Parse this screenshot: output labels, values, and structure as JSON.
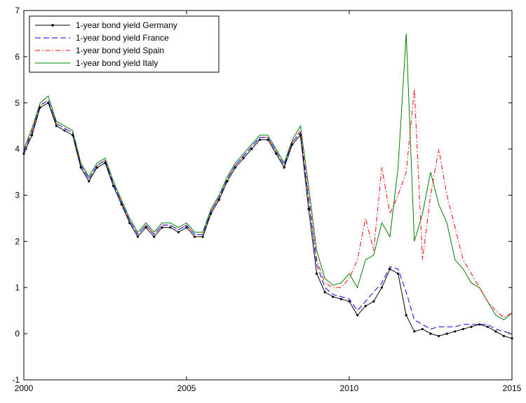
{
  "chart_data": {
    "type": "line",
    "x": [
      2000,
      2000.25,
      2000.5,
      2000.75,
      2001,
      2001.25,
      2001.5,
      2001.75,
      2002,
      2002.25,
      2002.5,
      2002.75,
      2003,
      2003.25,
      2003.5,
      2003.75,
      2004,
      2004.25,
      2004.5,
      2004.75,
      2005,
      2005.25,
      2005.5,
      2005.75,
      2006,
      2006.25,
      2006.5,
      2006.75,
      2007,
      2007.25,
      2007.5,
      2007.75,
      2008,
      2008.25,
      2008.5,
      2008.75,
      2009,
      2009.25,
      2009.5,
      2009.75,
      2010,
      2010.25,
      2010.5,
      2010.75,
      2011,
      2011.25,
      2011.5,
      2011.75,
      2012,
      2012.25,
      2012.5,
      2012.75,
      2013,
      2013.25,
      2013.5,
      2013.75,
      2014,
      2014.25,
      2014.5,
      2014.75,
      2015
    ],
    "series": [
      {
        "name": "1-year bond yield Germany",
        "color": "#000000",
        "style": "solid",
        "marker": "dot",
        "values": [
          3.9,
          4.3,
          4.9,
          5.0,
          4.5,
          4.4,
          4.3,
          3.6,
          3.3,
          3.6,
          3.7,
          3.2,
          2.8,
          2.4,
          2.1,
          2.3,
          2.1,
          2.3,
          2.3,
          2.2,
          2.3,
          2.1,
          2.1,
          2.6,
          2.9,
          3.3,
          3.6,
          3.8,
          4.0,
          4.2,
          4.2,
          3.9,
          3.6,
          4.1,
          4.3,
          2.7,
          1.3,
          0.9,
          0.8,
          0.75,
          0.7,
          0.4,
          0.6,
          0.7,
          1.0,
          1.4,
          1.3,
          0.4,
          0.05,
          0.1,
          0.0,
          -0.05,
          0.0,
          0.05,
          0.1,
          0.15,
          0.2,
          0.15,
          0.05,
          -0.05,
          -0.1
        ]
      },
      {
        "name": "1-year bond yield France",
        "color": "#0000ff",
        "style": "dashed",
        "marker": "none",
        "values": [
          3.95,
          4.35,
          4.95,
          5.05,
          4.55,
          4.45,
          4.35,
          3.65,
          3.35,
          3.65,
          3.75,
          3.25,
          2.85,
          2.45,
          2.15,
          2.35,
          2.15,
          2.35,
          2.35,
          2.25,
          2.35,
          2.15,
          2.15,
          2.65,
          2.95,
          3.35,
          3.65,
          3.85,
          4.05,
          4.25,
          4.25,
          3.95,
          3.65,
          4.15,
          4.35,
          2.9,
          1.5,
          1.0,
          0.85,
          0.8,
          0.75,
          0.5,
          0.7,
          0.9,
          1.1,
          1.45,
          1.4,
          0.9,
          0.3,
          0.2,
          0.1,
          0.15,
          0.15,
          0.15,
          0.2,
          0.2,
          0.2,
          0.2,
          0.1,
          0.05,
          0.0
        ]
      },
      {
        "name": "1-year bond yield Spain",
        "color": "#ff0000",
        "style": "dashdot",
        "marker": "none",
        "values": [
          3.95,
          4.4,
          4.95,
          5.05,
          4.55,
          4.45,
          4.35,
          3.65,
          3.35,
          3.65,
          3.75,
          3.25,
          2.85,
          2.45,
          2.15,
          2.35,
          2.15,
          2.35,
          2.35,
          2.25,
          2.35,
          2.15,
          2.15,
          2.65,
          2.95,
          3.35,
          3.65,
          3.85,
          4.05,
          4.25,
          4.25,
          3.95,
          3.65,
          4.15,
          4.4,
          3.0,
          1.6,
          1.1,
          1.0,
          1.0,
          1.2,
          1.6,
          2.5,
          1.8,
          3.6,
          2.6,
          3.0,
          3.5,
          5.3,
          1.6,
          3.0,
          4.0,
          3.0,
          2.3,
          1.6,
          1.3,
          1.0,
          0.7,
          0.5,
          0.35,
          0.45
        ]
      },
      {
        "name": "1-year bond yield Italy",
        "color": "#008000",
        "style": "solid",
        "marker": "none",
        "values": [
          4.0,
          4.45,
          5.0,
          5.15,
          4.6,
          4.5,
          4.4,
          3.7,
          3.4,
          3.7,
          3.8,
          3.3,
          2.9,
          2.5,
          2.2,
          2.4,
          2.2,
          2.4,
          2.4,
          2.3,
          2.4,
          2.2,
          2.2,
          2.7,
          3.0,
          3.4,
          3.7,
          3.9,
          4.1,
          4.3,
          4.3,
          4.0,
          3.7,
          4.2,
          4.5,
          3.2,
          1.8,
          1.2,
          1.05,
          1.1,
          1.3,
          1.0,
          1.6,
          1.7,
          2.4,
          2.1,
          3.6,
          6.5,
          2.0,
          2.6,
          3.5,
          2.8,
          2.4,
          1.6,
          1.4,
          1.1,
          1.0,
          0.7,
          0.4,
          0.3,
          0.45
        ]
      }
    ],
    "xlim": [
      2000,
      2015
    ],
    "xticks": [
      2000,
      2005,
      2010,
      2015
    ],
    "ylim": [
      -1,
      7
    ],
    "yticks": [
      -1,
      0,
      1,
      2,
      3,
      4,
      5,
      6,
      7
    ],
    "grid": false,
    "legend": "upper left"
  }
}
